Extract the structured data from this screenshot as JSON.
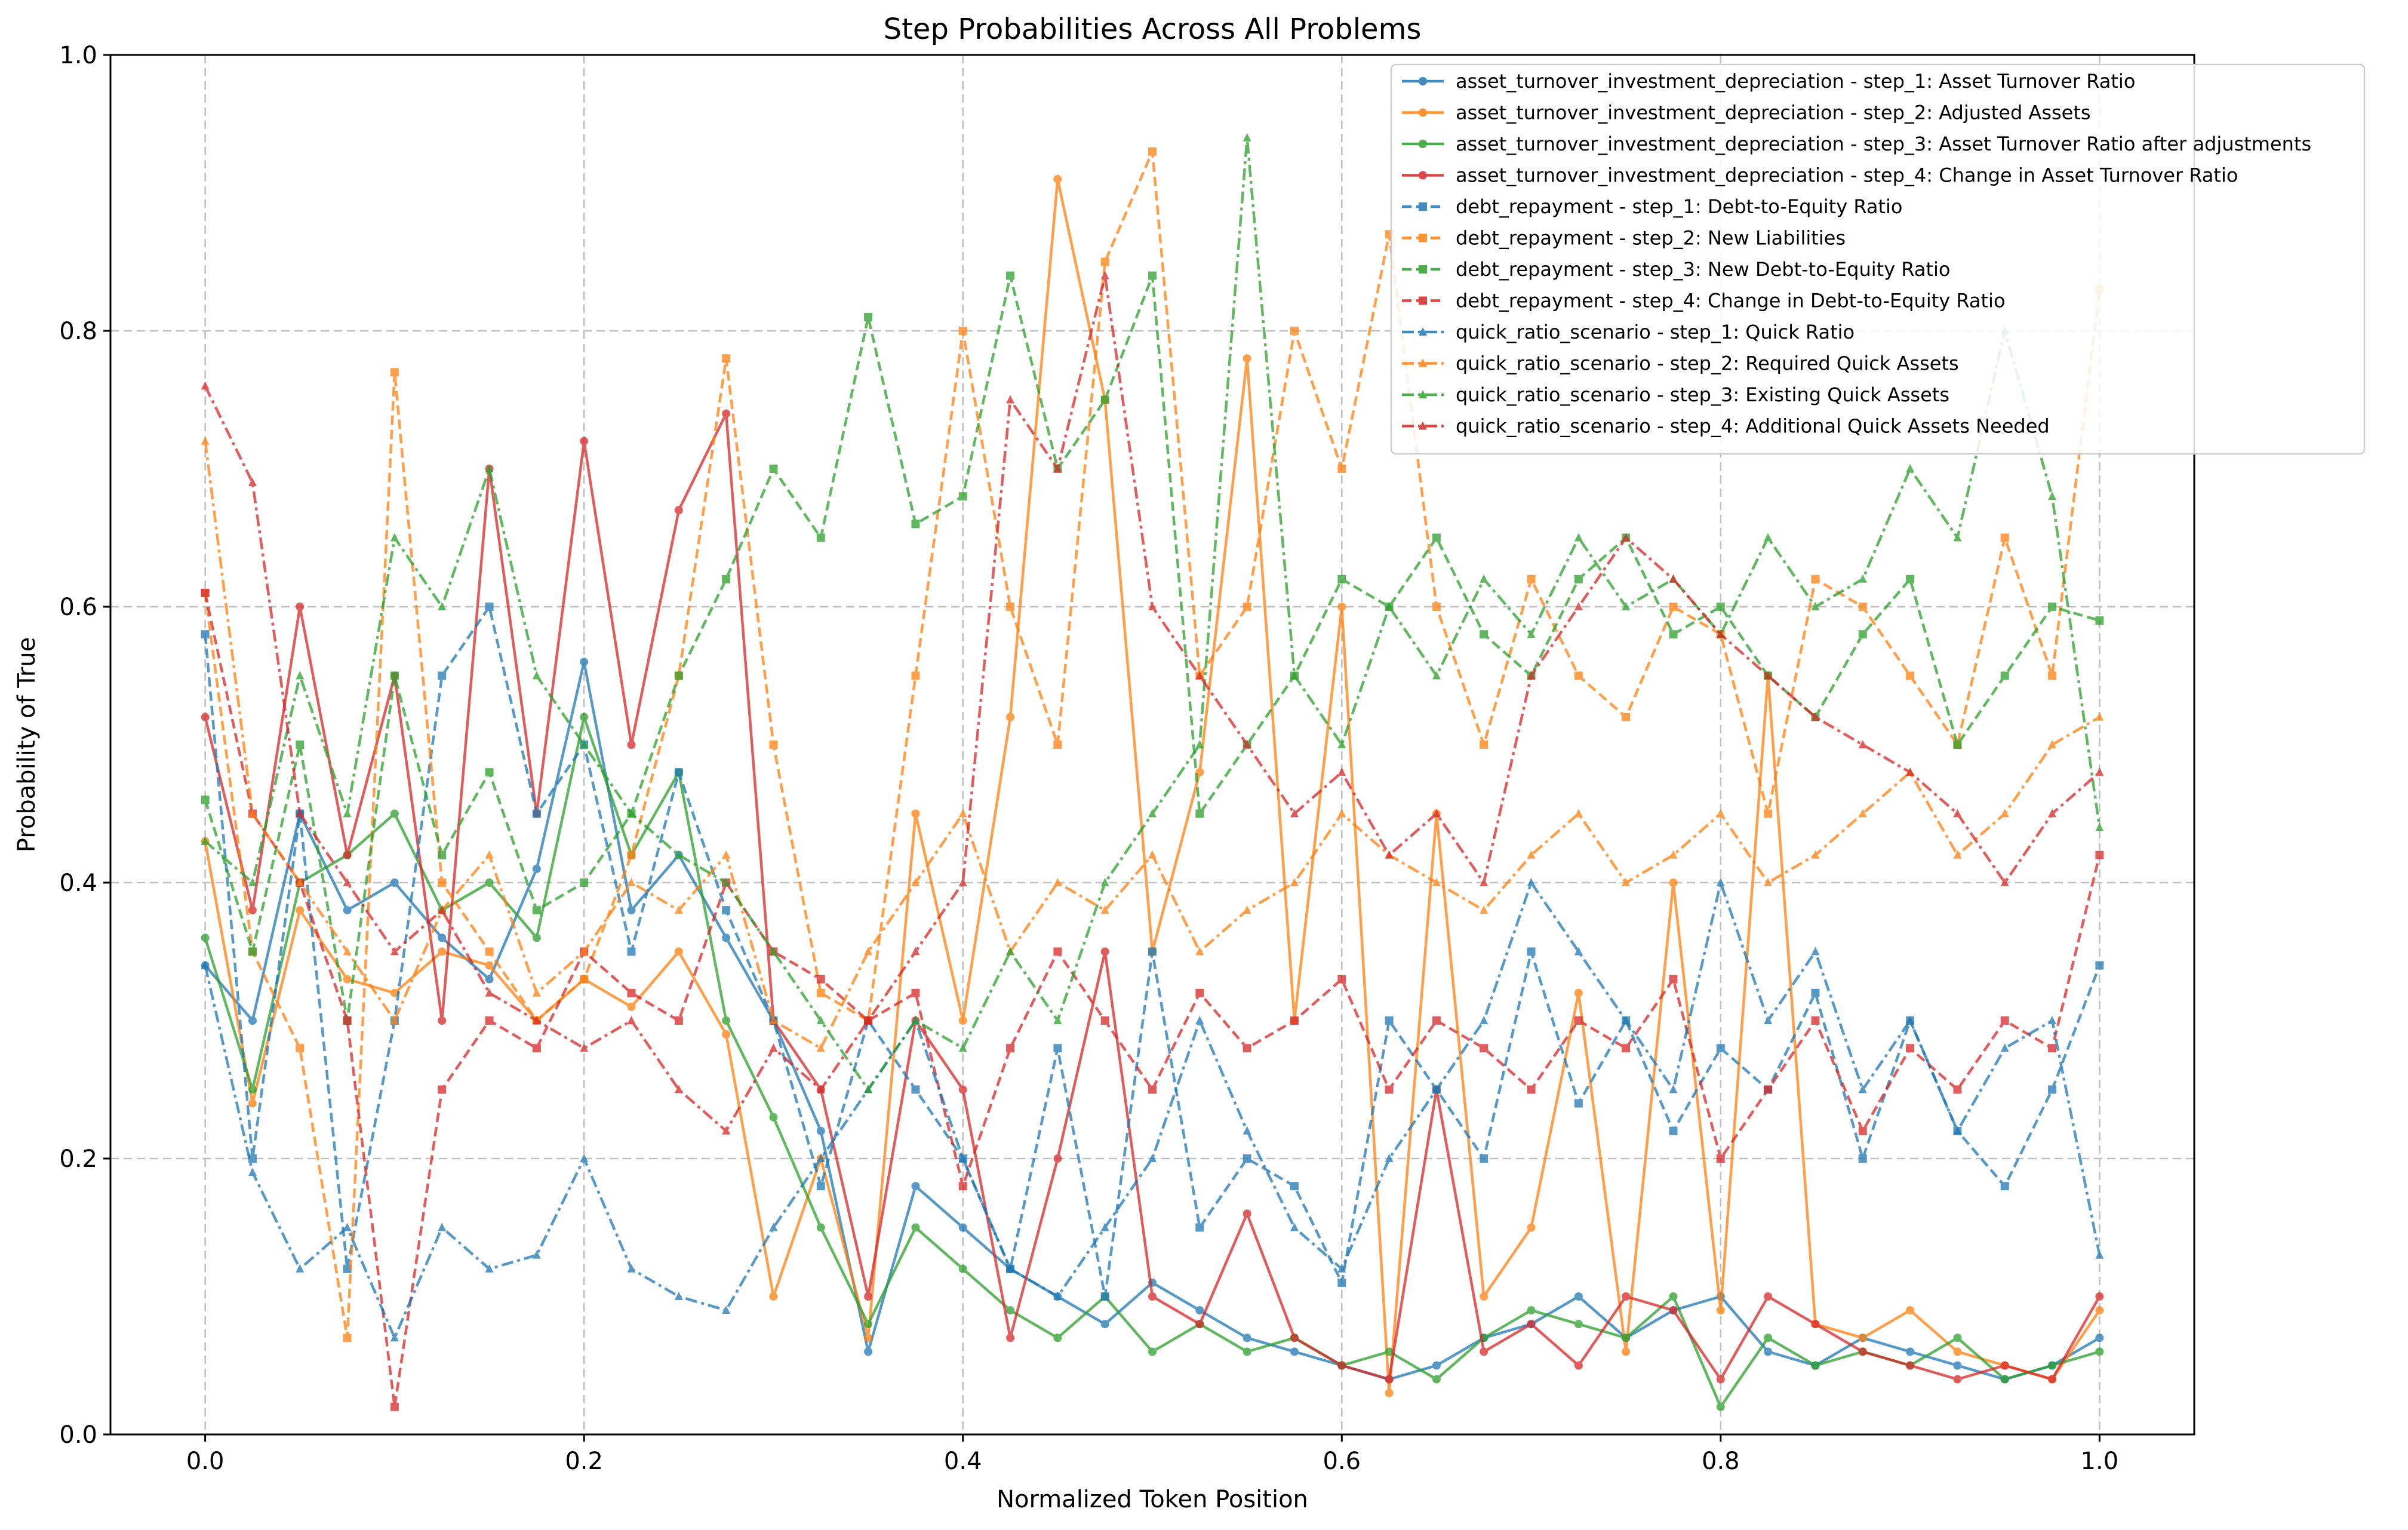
{
  "chart_data": {
    "type": "line",
    "title": "Step Probabilities Across All Problems",
    "xlabel": "Normalized Token Position",
    "ylabel": "Probability of True",
    "xlim": [
      -0.05,
      1.05
    ],
    "ylim": [
      0.0,
      1.0
    ],
    "xticks": [
      0.0,
      0.2,
      0.4,
      0.6,
      0.8,
      1.0
    ],
    "xtick_labels": [
      "0.0",
      "0.2",
      "0.4",
      "0.6",
      "0.8",
      "1.0"
    ],
    "yticks": [
      0.0,
      0.2,
      0.4,
      0.6,
      0.8,
      1.0
    ],
    "ytick_labels": [
      "0.0",
      "0.2",
      "0.4",
      "0.6",
      "0.8",
      "1.0"
    ],
    "grid": true,
    "legend_position": "top-right",
    "x": [
      0.0,
      0.025,
      0.05,
      0.075,
      0.1,
      0.125,
      0.15,
      0.175,
      0.2,
      0.225,
      0.25,
      0.275,
      0.3,
      0.325,
      0.35,
      0.375,
      0.4,
      0.425,
      0.45,
      0.475,
      0.5,
      0.525,
      0.55,
      0.575,
      0.6,
      0.625,
      0.65,
      0.675,
      0.7,
      0.725,
      0.75,
      0.775,
      0.8,
      0.825,
      0.85,
      0.875,
      0.9,
      0.925,
      0.95,
      0.975,
      1.0
    ],
    "series": [
      {
        "name": "asset_turnover_investment_depreciation - step_1: Asset Turnover Ratio",
        "color": "#1f77b4",
        "dash": "solid",
        "marker": "circle",
        "values": [
          0.34,
          0.3,
          0.45,
          0.38,
          0.4,
          0.36,
          0.33,
          0.41,
          0.56,
          0.38,
          0.42,
          0.36,
          0.3,
          0.22,
          0.06,
          0.18,
          0.15,
          0.12,
          0.1,
          0.08,
          0.11,
          0.09,
          0.07,
          0.06,
          0.05,
          0.04,
          0.05,
          0.07,
          0.08,
          0.1,
          0.07,
          0.09,
          0.1,
          0.06,
          0.05,
          0.07,
          0.06,
          0.05,
          0.04,
          0.05,
          0.07
        ]
      },
      {
        "name": "asset_turnover_investment_depreciation - step_2: Adjusted Assets",
        "color": "#ff7f0e",
        "dash": "solid",
        "marker": "circle",
        "values": [
          0.43,
          0.24,
          0.38,
          0.33,
          0.32,
          0.35,
          0.34,
          0.3,
          0.33,
          0.31,
          0.35,
          0.29,
          0.1,
          0.2,
          0.07,
          0.45,
          0.3,
          0.52,
          0.91,
          0.75,
          0.35,
          0.48,
          0.78,
          0.3,
          0.6,
          0.03,
          0.45,
          0.1,
          0.15,
          0.32,
          0.06,
          0.4,
          0.09,
          0.55,
          0.08,
          0.07,
          0.09,
          0.06,
          0.05,
          0.04,
          0.09
        ]
      },
      {
        "name": "asset_turnover_investment_depreciation - step_3: Asset Turnover Ratio after adjustments",
        "color": "#2ca02c",
        "dash": "solid",
        "marker": "circle",
        "values": [
          0.36,
          0.25,
          0.4,
          0.42,
          0.45,
          0.38,
          0.4,
          0.36,
          0.52,
          0.42,
          0.48,
          0.3,
          0.23,
          0.15,
          0.08,
          0.15,
          0.12,
          0.09,
          0.07,
          0.1,
          0.06,
          0.08,
          0.06,
          0.07,
          0.05,
          0.06,
          0.04,
          0.07,
          0.09,
          0.08,
          0.07,
          0.1,
          0.02,
          0.07,
          0.05,
          0.06,
          0.05,
          0.07,
          0.04,
          0.05,
          0.06
        ]
      },
      {
        "name": "asset_turnover_investment_depreciation - step_4: Change in Asset Turnover Ratio",
        "color": "#d62728",
        "dash": "solid",
        "marker": "circle",
        "values": [
          0.52,
          0.38,
          0.6,
          0.42,
          0.55,
          0.3,
          0.7,
          0.45,
          0.72,
          0.5,
          0.67,
          0.74,
          0.3,
          0.25,
          0.1,
          0.3,
          0.25,
          0.07,
          0.2,
          0.35,
          0.1,
          0.08,
          0.16,
          0.07,
          0.05,
          0.04,
          0.25,
          0.06,
          0.08,
          0.05,
          0.1,
          0.09,
          0.04,
          0.1,
          0.08,
          0.06,
          0.05,
          0.04,
          0.05,
          0.04,
          0.1
        ]
      },
      {
        "name": "debt_repayment - step_1: Debt-to-Equity Ratio",
        "color": "#1f77b4",
        "dash": "dashed",
        "marker": "square",
        "values": [
          0.58,
          0.2,
          0.45,
          0.12,
          0.3,
          0.55,
          0.6,
          0.45,
          0.5,
          0.35,
          0.48,
          0.38,
          0.3,
          0.18,
          0.3,
          0.25,
          0.2,
          0.12,
          0.28,
          0.1,
          0.35,
          0.15,
          0.2,
          0.18,
          0.11,
          0.3,
          0.25,
          0.2,
          0.35,
          0.24,
          0.3,
          0.22,
          0.28,
          0.25,
          0.32,
          0.2,
          0.3,
          0.22,
          0.18,
          0.25,
          0.34
        ]
      },
      {
        "name": "debt_repayment - step_2: New Liabilities",
        "color": "#ff7f0e",
        "dash": "dashed",
        "marker": "square",
        "values": [
          0.61,
          0.35,
          0.28,
          0.07,
          0.77,
          0.4,
          0.35,
          0.3,
          0.33,
          0.42,
          0.55,
          0.78,
          0.5,
          0.32,
          0.3,
          0.55,
          0.8,
          0.6,
          0.5,
          0.85,
          0.93,
          0.55,
          0.6,
          0.8,
          0.7,
          0.87,
          0.6,
          0.5,
          0.62,
          0.55,
          0.52,
          0.6,
          0.58,
          0.45,
          0.62,
          0.6,
          0.55,
          0.5,
          0.65,
          0.55,
          0.83
        ]
      },
      {
        "name": "debt_repayment - step_3: New Debt-to-Equity Ratio",
        "color": "#2ca02c",
        "dash": "dashed",
        "marker": "square",
        "values": [
          0.46,
          0.35,
          0.5,
          0.3,
          0.55,
          0.42,
          0.48,
          0.38,
          0.4,
          0.45,
          0.55,
          0.62,
          0.7,
          0.65,
          0.81,
          0.66,
          0.68,
          0.84,
          0.7,
          0.75,
          0.84,
          0.45,
          0.5,
          0.55,
          0.62,
          0.6,
          0.65,
          0.58,
          0.55,
          0.62,
          0.65,
          0.58,
          0.6,
          0.55,
          0.52,
          0.58,
          0.62,
          0.5,
          0.55,
          0.6,
          0.59
        ]
      },
      {
        "name": "debt_repayment - step_4: Change in Debt-to-Equity Ratio",
        "color": "#d62728",
        "dash": "dashed",
        "marker": "square",
        "values": [
          0.61,
          0.45,
          0.4,
          0.3,
          0.02,
          0.25,
          0.3,
          0.28,
          0.35,
          0.32,
          0.3,
          0.4,
          0.35,
          0.33,
          0.3,
          0.32,
          0.18,
          0.28,
          0.35,
          0.3,
          0.25,
          0.32,
          0.28,
          0.3,
          0.33,
          0.25,
          0.3,
          0.28,
          0.25,
          0.3,
          0.28,
          0.33,
          0.2,
          0.25,
          0.3,
          0.22,
          0.28,
          0.25,
          0.3,
          0.28,
          0.42
        ]
      },
      {
        "name": "quick_ratio_scenario - step_1: Quick Ratio",
        "color": "#1f77b4",
        "dash": "dashdot",
        "marker": "triangle",
        "values": [
          0.34,
          0.19,
          0.12,
          0.15,
          0.07,
          0.15,
          0.12,
          0.13,
          0.2,
          0.12,
          0.1,
          0.09,
          0.15,
          0.2,
          0.25,
          0.3,
          0.2,
          0.12,
          0.1,
          0.15,
          0.2,
          0.3,
          0.22,
          0.15,
          0.12,
          0.2,
          0.25,
          0.3,
          0.4,
          0.35,
          0.3,
          0.25,
          0.4,
          0.3,
          0.35,
          0.25,
          0.3,
          0.22,
          0.28,
          0.3,
          0.13
        ]
      },
      {
        "name": "quick_ratio_scenario - step_2: Required Quick Assets",
        "color": "#ff7f0e",
        "dash": "dashdot",
        "marker": "triangle",
        "values": [
          0.72,
          0.45,
          0.4,
          0.35,
          0.3,
          0.38,
          0.42,
          0.32,
          0.35,
          0.4,
          0.38,
          0.42,
          0.3,
          0.28,
          0.35,
          0.4,
          0.45,
          0.35,
          0.4,
          0.38,
          0.42,
          0.35,
          0.38,
          0.4,
          0.45,
          0.42,
          0.4,
          0.38,
          0.42,
          0.45,
          0.4,
          0.42,
          0.45,
          0.4,
          0.42,
          0.45,
          0.48,
          0.42,
          0.45,
          0.5,
          0.52
        ]
      },
      {
        "name": "quick_ratio_scenario - step_3: Existing Quick Assets",
        "color": "#2ca02c",
        "dash": "dashdot",
        "marker": "triangle",
        "values": [
          0.43,
          0.4,
          0.55,
          0.45,
          0.65,
          0.6,
          0.7,
          0.55,
          0.5,
          0.45,
          0.42,
          0.4,
          0.35,
          0.3,
          0.25,
          0.3,
          0.28,
          0.35,
          0.3,
          0.4,
          0.45,
          0.5,
          0.94,
          0.55,
          0.5,
          0.6,
          0.55,
          0.62,
          0.58,
          0.65,
          0.6,
          0.62,
          0.58,
          0.65,
          0.6,
          0.62,
          0.7,
          0.65,
          0.8,
          0.68,
          0.44
        ]
      },
      {
        "name": "quick_ratio_scenario - step_4: Additional Quick Assets Needed",
        "color": "#d62728",
        "dash": "dashdot",
        "marker": "triangle",
        "values": [
          0.76,
          0.69,
          0.45,
          0.4,
          0.35,
          0.38,
          0.32,
          0.3,
          0.28,
          0.3,
          0.25,
          0.22,
          0.28,
          0.25,
          0.3,
          0.35,
          0.4,
          0.75,
          0.7,
          0.84,
          0.6,
          0.55,
          0.5,
          0.45,
          0.48,
          0.42,
          0.45,
          0.4,
          0.55,
          0.6,
          0.65,
          0.62,
          0.58,
          0.55,
          0.52,
          0.5,
          0.48,
          0.45,
          0.4,
          0.45,
          0.48
        ]
      }
    ]
  }
}
